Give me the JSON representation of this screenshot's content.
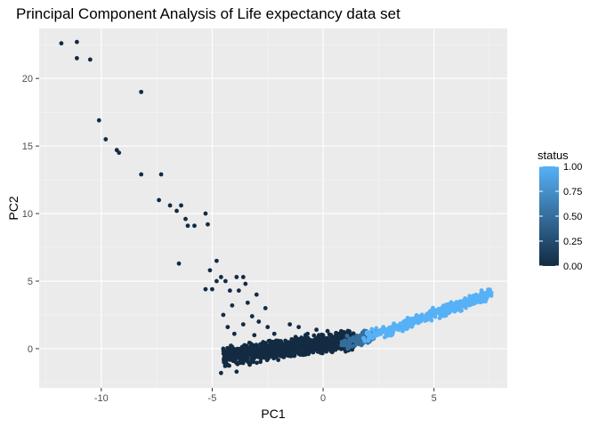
{
  "chart_data": {
    "type": "scatter",
    "title": "Principal Component Analysis of Life expectancy data set",
    "xlabel": "PC1",
    "ylabel": "PC2",
    "xlim": [
      -12.8,
      8.3
    ],
    "ylim": [
      -2.9,
      23.7
    ],
    "x_ticks": [
      -10,
      -5,
      0,
      5
    ],
    "x_tick_labels": [
      "-10",
      "-5",
      "0",
      "5"
    ],
    "y_ticks": [
      0,
      5,
      10,
      15,
      20
    ],
    "y_tick_labels": [
      "0",
      "5",
      "10",
      "15",
      "20"
    ],
    "grid": true,
    "legend": {
      "title": "status",
      "position": "right",
      "labels": [
        "1.00",
        "0.75",
        "0.50",
        "0.25",
        "0.00"
      ],
      "values": [
        1.0,
        0.75,
        0.5,
        0.25,
        0.0
      ],
      "color_low": "#132b43",
      "color_high": "#56b1f7"
    },
    "colors": {
      "panel": "#ebebeb",
      "grid_major": "#ffffff",
      "grid_minor": "#f5f5f5"
    },
    "series": [
      {
        "status": 0,
        "points": [
          [
            -11.8,
            22.6
          ],
          [
            -11.1,
            22.7
          ],
          [
            -11.1,
            21.5
          ],
          [
            -10.5,
            21.4
          ],
          [
            -8.2,
            19.0
          ],
          [
            -10.1,
            16.9
          ],
          [
            -9.8,
            15.5
          ],
          [
            -9.3,
            14.7
          ],
          [
            -9.2,
            14.5
          ],
          [
            -8.2,
            12.9
          ],
          [
            -7.3,
            12.9
          ],
          [
            -7.4,
            11.0
          ],
          [
            -6.9,
            10.6
          ],
          [
            -6.4,
            10.6
          ],
          [
            -6.6,
            10.2
          ],
          [
            -6.2,
            9.6
          ],
          [
            -5.3,
            10.0
          ],
          [
            -5.2,
            9.2
          ],
          [
            -6.1,
            9.1
          ],
          [
            -5.8,
            9.1
          ],
          [
            -4.8,
            6.5
          ],
          [
            -6.5,
            6.3
          ],
          [
            -5.1,
            5.8
          ],
          [
            -4.8,
            5.0
          ],
          [
            -4.6,
            5.3
          ],
          [
            -4.4,
            5.0
          ],
          [
            -3.9,
            5.3
          ],
          [
            -3.6,
            5.3
          ],
          [
            -3.5,
            4.8
          ],
          [
            -5.3,
            4.4
          ],
          [
            -5.0,
            4.4
          ],
          [
            -4.2,
            4.3
          ],
          [
            -3.8,
            4.3
          ],
          [
            -3.0,
            4.0
          ],
          [
            -2.6,
            3.0
          ],
          [
            -3.4,
            3.4
          ],
          [
            -4.1,
            3.2
          ],
          [
            -4.5,
            2.5
          ],
          [
            -3.2,
            2.4
          ],
          [
            -2.9,
            2.0
          ],
          [
            -3.6,
            1.8
          ],
          [
            -4.3,
            1.6
          ],
          [
            -4.0,
            1.1
          ],
          [
            -1.5,
            1.8
          ],
          [
            -1.1,
            1.6
          ],
          [
            -0.3,
            1.4
          ],
          [
            -0.7,
            1.1
          ],
          [
            -2.5,
            1.6
          ],
          [
            -3.1,
            1.0
          ],
          [
            -2.2,
            1.1
          ],
          [
            0.2,
            1.3
          ],
          [
            0.7,
            1.1
          ],
          [
            -4.5,
            0.0
          ],
          [
            -4.2,
            -0.4
          ],
          [
            -3.9,
            -1.7
          ],
          [
            -4.6,
            -1.8
          ]
        ]
      },
      {
        "status": 0,
        "cloud": {
          "x0": -4.5,
          "x1": 1.4,
          "y_center_at_x0": -0.6,
          "slope": 0.22,
          "spread": 0.45,
          "count": 1300,
          "seed": 11
        }
      },
      {
        "status": 0.5,
        "cloud": {
          "x0": 0.8,
          "x1": 2.4,
          "y_center_at_x0": 0.4,
          "slope": 0.35,
          "spread": 0.35,
          "count": 90,
          "seed": 23
        }
      },
      {
        "status": 1,
        "cloud": {
          "x0": 1.8,
          "x1": 7.6,
          "y_center_at_x0": 0.7,
          "slope": 0.58,
          "spread": 0.28,
          "count": 420,
          "seed": 37
        }
      }
    ]
  }
}
